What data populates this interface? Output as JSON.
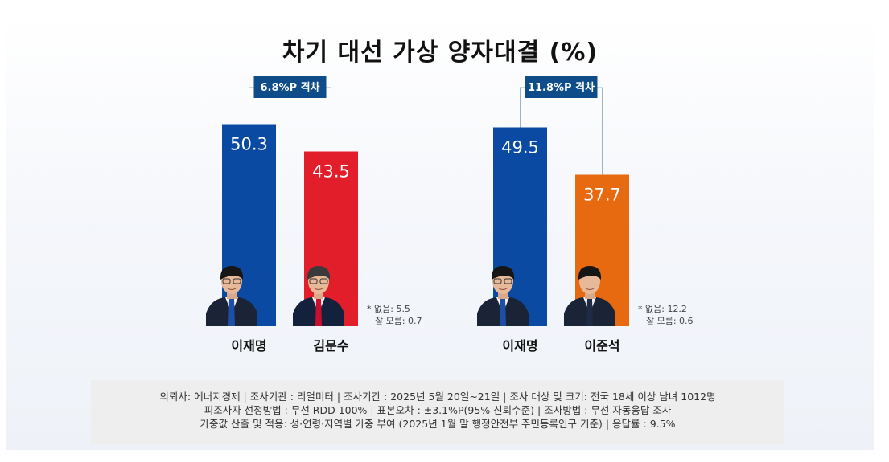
{
  "title": "차기 대선 가상 양자대결 (%)",
  "chart_data": [
    {
      "type": "bar",
      "categories": [
        "이재명",
        "김문수"
      ],
      "values": [
        50.3,
        43.5
      ],
      "colors": [
        "#0a4aa3",
        "#e31e2b"
      ],
      "gap_label": "6.8%P 격차",
      "notes": [
        "* 없음: 5.5",
        "잘 모름: 0.7"
      ],
      "portraits": [
        "lee-jae-myung-portrait",
        "kim-moon-soo-portrait"
      ],
      "ylim": [
        0,
        60
      ]
    },
    {
      "type": "bar",
      "categories": [
        "이재명",
        "이준석"
      ],
      "values": [
        49.5,
        37.7
      ],
      "colors": [
        "#0a4aa3",
        "#e86a10"
      ],
      "gap_label": "11.8%P 격차",
      "notes": [
        "* 없음: 12.2",
        "잘 모름: 0.6"
      ],
      "portraits": [
        "lee-jae-myung-portrait",
        "lee-jun-seok-portrait"
      ],
      "ylim": [
        0,
        60
      ]
    }
  ],
  "survey_notes": [
    "의뢰사: 에너지경제 | 조사기관 : 리얼미터  |  조사기간 : 2025년 5월 20일~21일 | 조사 대상 및 크기: 전국 18세 이상 남녀 1012명",
    "피조사자 선정방법 : 무선 RDD 100% | 표본오차 : ±3.1%P(95% 신뢰수준) | 조사방법 : 무선 자동응답 조사",
    "가중값 산출 및 적용: 성·연령·지역별 가중 부여 (2025년 1월 말 행정안전부 주민등록인구 기준) | 응답률 : 9.5%"
  ],
  "colors": {
    "gap_box": "#0f4c8a",
    "connector": "#9fb3c8"
  }
}
